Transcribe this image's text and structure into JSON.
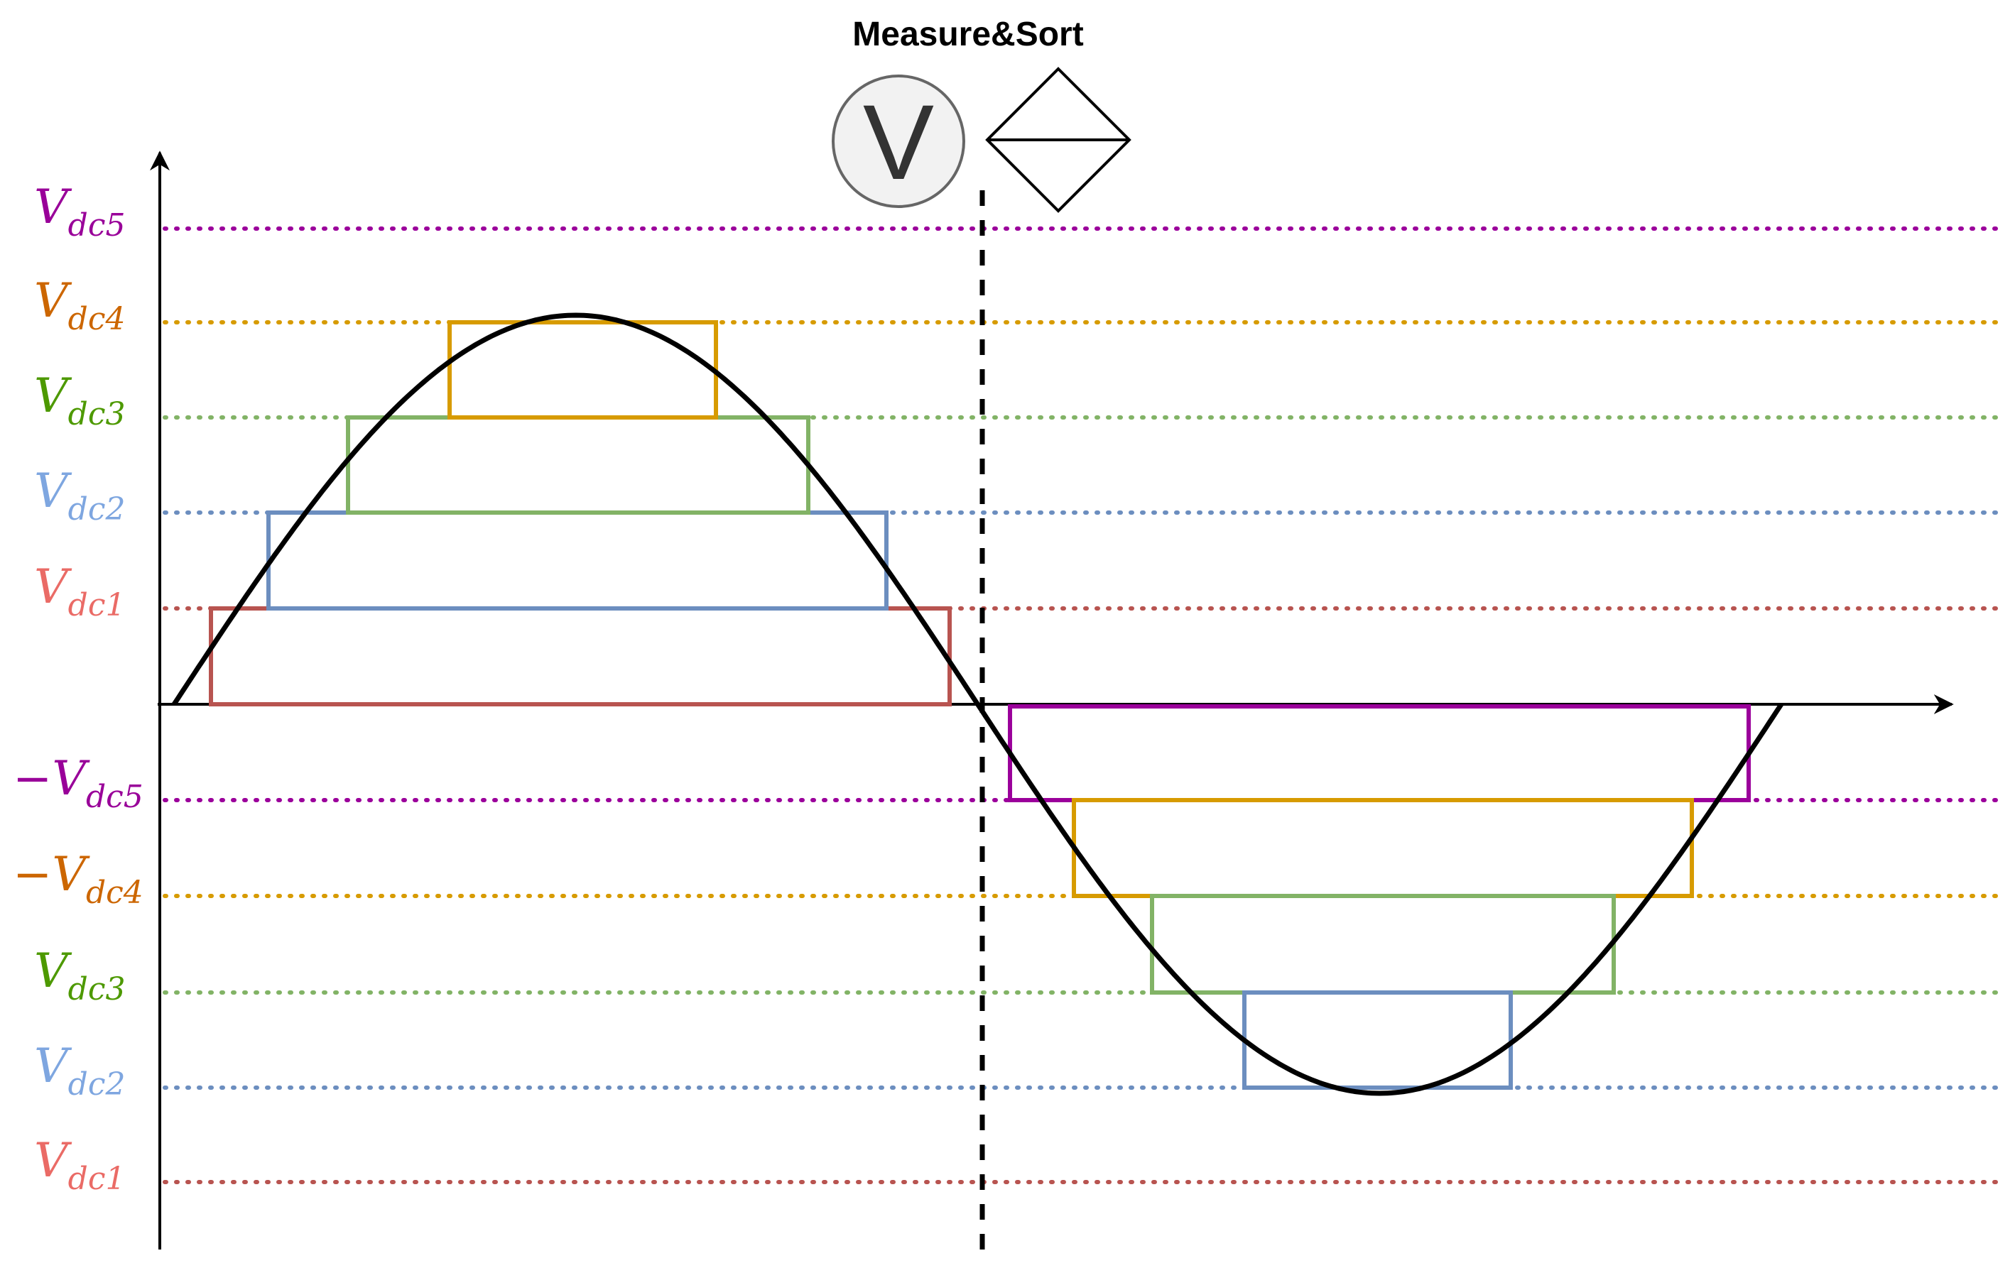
{
  "diagram": {
    "title": "Measure&Sort",
    "voltmeter_icon": {
      "glyph": "V",
      "icon": "voltmeter-icon"
    },
    "sort_icon": {
      "icon": "sort-diamond-icon"
    },
    "colors": {
      "dc1": "#b85450",
      "dc2": "#6c8ebf",
      "dc3": "#82b366",
      "dc4": "#d79b00",
      "dc5": "#9b009b",
      "label_dc1": "#ea6b66",
      "label_dc2": "#7ea6e0",
      "label_dc3": "#4d9900",
      "label_dc4": "#cc6600",
      "label_dc5": "#990099"
    },
    "labels": [
      {
        "sign": "",
        "main": "V",
        "sub": "dc5",
        "color_key": "label_dc5"
      },
      {
        "sign": "",
        "main": "V",
        "sub": "dc4",
        "color_key": "label_dc4"
      },
      {
        "sign": "",
        "main": "V",
        "sub": "dc3",
        "color_key": "label_dc3"
      },
      {
        "sign": "",
        "main": "V",
        "sub": "dc2",
        "color_key": "label_dc2"
      },
      {
        "sign": "",
        "main": "V",
        "sub": "dc1",
        "color_key": "label_dc1"
      },
      {
        "sign": "−",
        "main": "V",
        "sub": "dc5",
        "color_key": "label_dc5"
      },
      {
        "sign": "−",
        "main": "V",
        "sub": "dc4",
        "color_key": "label_dc4"
      },
      {
        "sign": "",
        "main": "V",
        "sub": "dc3",
        "color_key": "label_dc3"
      },
      {
        "sign": "",
        "main": "V",
        "sub": "dc2",
        "color_key": "label_dc2"
      },
      {
        "sign": "",
        "main": "V",
        "sub": "dc1",
        "color_key": "label_dc1"
      }
    ]
  }
}
